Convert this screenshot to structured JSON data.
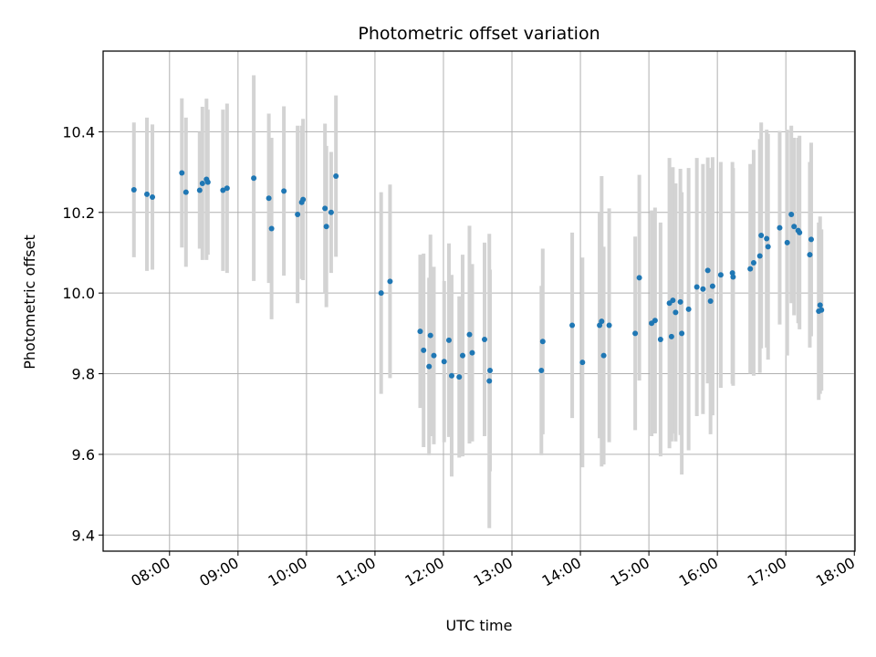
{
  "chart_data": {
    "type": "scatter",
    "title": "Photometric offset variation",
    "xlabel": "UTC time",
    "ylabel": "Photometric offset",
    "grid": true,
    "x_unit": "hours UTC",
    "xlim": [
      7.03,
      18.01
    ],
    "ylim": [
      9.36,
      10.6
    ],
    "x_tick_values": [
      8,
      9,
      10,
      11,
      12,
      13,
      14,
      15,
      16,
      17,
      18
    ],
    "x_tick_labels": [
      "08:00",
      "09:00",
      "10:00",
      "11:00",
      "12:00",
      "13:00",
      "14:00",
      "15:00",
      "16:00",
      "17:00",
      "18:00"
    ],
    "y_tick_values": [
      9.4,
      9.6,
      9.8,
      10.0,
      10.2,
      10.4
    ],
    "y_tick_labels": [
      "9.4",
      "9.6",
      "9.8",
      "10.0",
      "10.2",
      "10.4"
    ],
    "colors": {
      "marker": "#1f77b4",
      "errorbar": "#d3d3d3",
      "grid": "#b0b0b0"
    },
    "series": [
      {
        "x": [
          7.48,
          7.67,
          7.75,
          8.18,
          8.24,
          8.44,
          8.48,
          8.54,
          8.56,
          8.78,
          8.84,
          9.23,
          9.45,
          9.49,
          9.67,
          9.87,
          9.93,
          9.95,
          10.27,
          10.29,
          10.36,
          10.43,
          11.09,
          11.22,
          11.66,
          11.71,
          11.79,
          11.81,
          11.86,
          12.01,
          12.08,
          12.12,
          12.23,
          12.28,
          12.38,
          12.42,
          12.6,
          12.67,
          12.68,
          13.43,
          13.45,
          13.88,
          14.03,
          14.28,
          14.31,
          14.34,
          14.42,
          14.8,
          14.86,
          15.04,
          15.09,
          15.17,
          15.3,
          15.33,
          15.35,
          15.39,
          15.46,
          15.48,
          15.58,
          15.7,
          15.79,
          15.86,
          15.9,
          15.93,
          16.05,
          16.22,
          16.23,
          16.48,
          16.53,
          16.62,
          16.64,
          16.72,
          16.74,
          16.91,
          17.02,
          17.08,
          17.12,
          17.18,
          17.2,
          17.35,
          17.37,
          17.48,
          17.5,
          17.52
        ],
        "y": [
          10.256,
          10.245,
          10.238,
          10.298,
          10.25,
          10.255,
          10.272,
          10.282,
          10.275,
          10.255,
          10.26,
          10.285,
          10.235,
          10.16,
          10.253,
          10.195,
          10.225,
          10.232,
          10.21,
          10.165,
          10.2,
          10.29,
          10.0,
          10.029,
          9.905,
          9.858,
          9.818,
          9.895,
          9.845,
          9.83,
          9.883,
          9.795,
          9.792,
          9.845,
          9.897,
          9.852,
          9.885,
          9.782,
          9.808,
          9.808,
          9.88,
          9.92,
          9.828,
          9.92,
          9.93,
          9.845,
          9.92,
          9.9,
          10.038,
          9.925,
          9.932,
          9.885,
          9.975,
          9.892,
          9.982,
          9.952,
          9.978,
          9.9,
          9.96,
          10.015,
          10.01,
          10.056,
          9.98,
          10.017,
          10.045,
          10.05,
          10.04,
          10.06,
          10.075,
          10.092,
          10.143,
          10.135,
          10.115,
          10.162,
          10.125,
          10.195,
          10.165,
          10.155,
          10.15,
          10.095,
          10.133,
          9.955,
          9.97,
          9.958
        ],
        "yerr": [
          0.167,
          0.19,
          0.18,
          0.185,
          0.185,
          0.145,
          0.19,
          0.2,
          0.18,
          0.2,
          0.21,
          0.255,
          0.21,
          0.225,
          0.21,
          0.22,
          0.19,
          0.2,
          0.21,
          0.2,
          0.15,
          0.2,
          0.25,
          0.24,
          0.19,
          0.24,
          0.22,
          0.25,
          0.22,
          0.2,
          0.24,
          0.25,
          0.2,
          0.25,
          0.27,
          0.22,
          0.24,
          0.365,
          0.25,
          0.21,
          0.23,
          0.23,
          0.26,
          0.28,
          0.36,
          0.27,
          0.29,
          0.24,
          0.255,
          0.28,
          0.28,
          0.29,
          0.36,
          0.26,
          0.33,
          0.32,
          0.33,
          0.35,
          0.35,
          0.32,
          0.31,
          0.28,
          0.33,
          0.32,
          0.28,
          0.275,
          0.27,
          0.26,
          0.28,
          0.29,
          0.28,
          0.27,
          0.28,
          0.24,
          0.28,
          0.22,
          0.22,
          0.23,
          0.24,
          0.23,
          0.24,
          0.22,
          0.22,
          0.2
        ]
      }
    ]
  }
}
